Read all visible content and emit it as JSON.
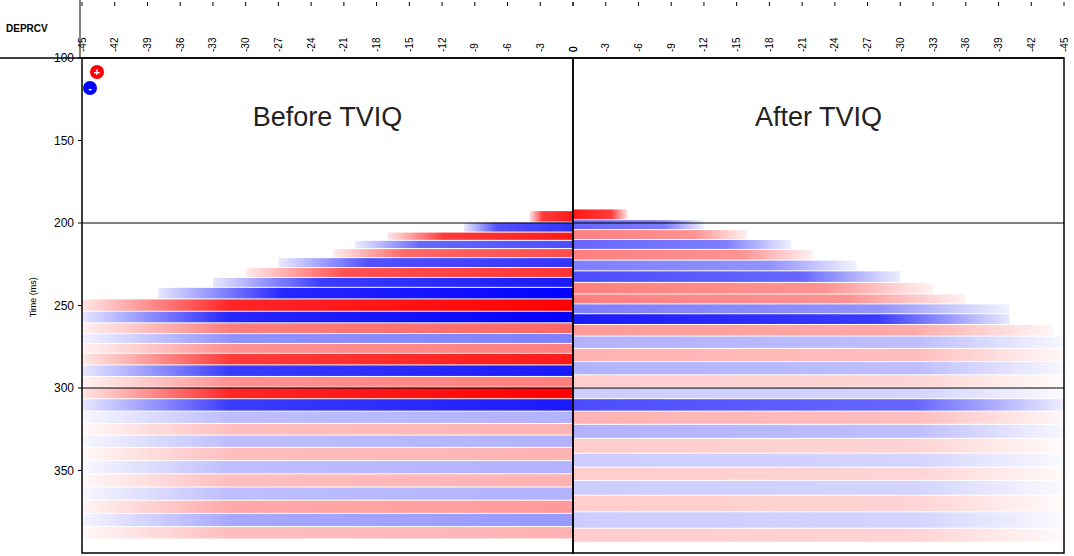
{
  "chart_data": [
    {
      "type": "seismic",
      "title": "Before TVIQ",
      "x_label": "DEPRCV",
      "y_label": "Time (ms)",
      "xlim": [
        -45,
        0
      ],
      "xticks": [
        -45,
        -42,
        -39,
        -36,
        -33,
        -30,
        -27,
        -24,
        -21,
        -18,
        -15,
        -12,
        -9,
        -6,
        -3,
        0
      ],
      "ylim": [
        100,
        400
      ],
      "yticks": [
        100,
        150,
        200,
        250,
        300,
        350
      ],
      "hlines": [
        200,
        300
      ],
      "zlim": [
        -1,
        1
      ],
      "polarity_labels": [
        "+",
        "-"
      ],
      "times": [
        196,
        203,
        208,
        213,
        218,
        224,
        230,
        236,
        242,
        250,
        257,
        264,
        270,
        276,
        282,
        290,
        296,
        303,
        310,
        318,
        325,
        332,
        340,
        348,
        356,
        364,
        372,
        380,
        388
      ],
      "amplitudes": [
        0.9,
        -0.8,
        0.9,
        -0.7,
        0.7,
        -0.8,
        0.8,
        -0.9,
        -1,
        1,
        -1,
        0.6,
        -0.5,
        0.5,
        0.9,
        -0.9,
        0.5,
        1,
        -0.9,
        -0.3,
        0.3,
        -0.3,
        0.3,
        -0.3,
        0.3,
        -0.3,
        0.4,
        -0.4,
        0.3
      ],
      "offset_ends": [
        -4,
        -10,
        -17,
        -20,
        -22,
        -27,
        -30,
        -33,
        -38,
        -45,
        -45,
        -45,
        -45,
        -45,
        -45,
        -45,
        -45,
        -45,
        -45,
        -45,
        -45,
        -45,
        -45,
        -45,
        -45,
        -45,
        -45,
        -45,
        -45
      ]
    },
    {
      "type": "seismic",
      "title": "After TVIQ",
      "xlim": [
        0,
        -45
      ],
      "xticks": [
        0,
        -3,
        -6,
        -9,
        -12,
        -15,
        -18,
        -21,
        -24,
        -27,
        -30,
        -33,
        -36,
        -39,
        -42,
        -45
      ],
      "ylim": [
        100,
        400
      ],
      "hlines": [
        200,
        300
      ],
      "zlim": [
        -1,
        1
      ],
      "tick_labels": "x",
      "times": [
        195,
        201,
        207,
        213,
        219,
        226,
        232,
        240,
        246,
        252,
        258,
        265,
        272,
        280,
        288,
        296,
        303,
        310,
        318,
        326,
        335,
        344,
        352,
        360,
        370,
        380,
        390
      ],
      "amplitudes": [
        0.9,
        -0.6,
        0.5,
        -0.6,
        0.5,
        -0.5,
        -0.7,
        0.5,
        0.5,
        -0.5,
        -0.9,
        0.4,
        -0.3,
        0.3,
        -0.3,
        0.2,
        -0.2,
        -0.7,
        0.3,
        -0.3,
        0.2,
        -0.2,
        0.2,
        -0.2,
        0.2,
        -0.2,
        0.2
      ],
      "offset_ends": [
        -5,
        -12,
        -16,
        -20,
        -22,
        -26,
        -30,
        -33,
        -36,
        -40,
        -40,
        -44,
        -45,
        -45,
        -45,
        -45,
        -45,
        -45,
        -45,
        -45,
        -45,
        -45,
        -45,
        -45,
        -45,
        -45,
        -45
      ]
    }
  ]
}
